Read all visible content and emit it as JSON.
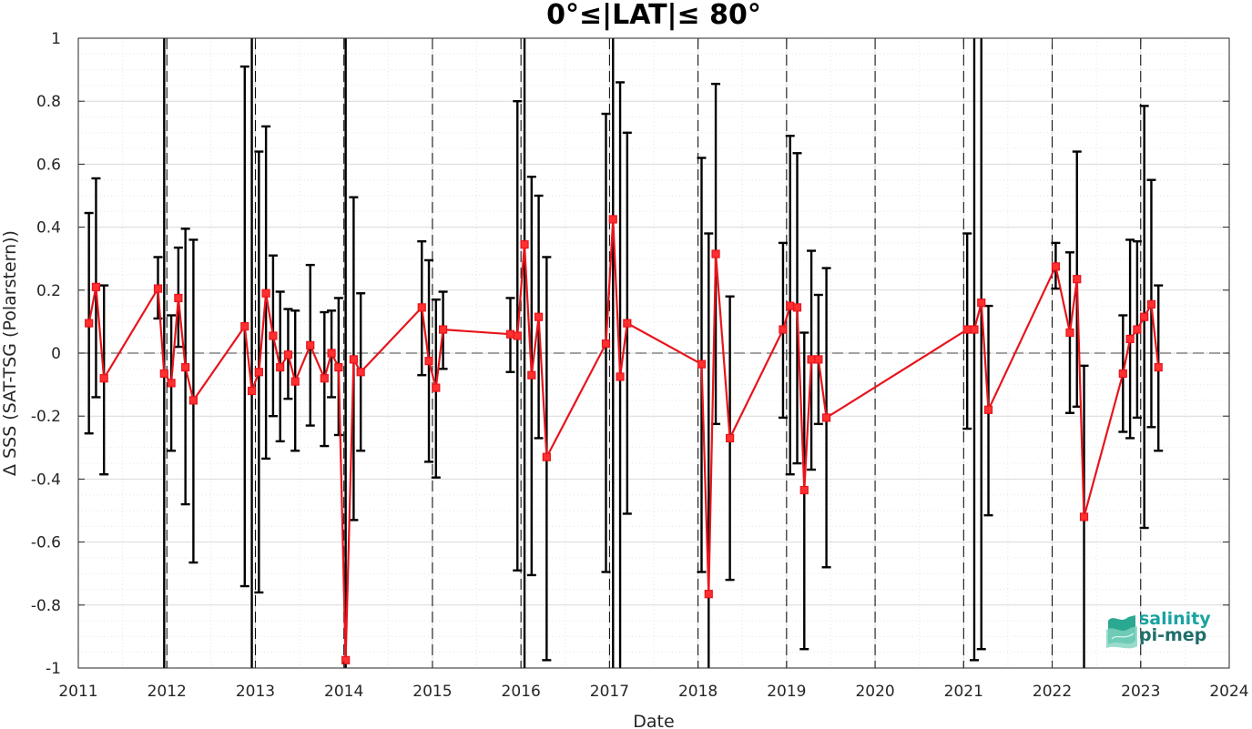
{
  "chart_data": {
    "type": "scatter",
    "title": "0°≤|LAT|≤ 80°",
    "xlabel": "Date",
    "ylabel": "Δ SSS (SAT-TSG (Polarstern))",
    "xlim": [
      2011,
      2024
    ],
    "ylim": [
      -1,
      1
    ],
    "xticks": [
      "2011",
      "2012",
      "2013",
      "2014",
      "2015",
      "2016",
      "2017",
      "2018",
      "2019",
      "2020",
      "2021",
      "2022",
      "2023",
      "2024"
    ],
    "yticks": [
      "1",
      "0.8",
      "0.6",
      "0.4",
      "0.2",
      "0",
      "-0.2",
      "-0.4",
      "-0.6",
      "-0.8",
      "-1"
    ],
    "grid": "on (major and minor)",
    "reference_line": {
      "y": 0,
      "style": "dashed"
    },
    "year_boundaries_dashed": true,
    "series": [
      {
        "marker": "square",
        "color": "#e8141c",
        "errorbar_color": "#000000",
        "points": [
          {
            "x": 2011.12,
            "y": 0.095,
            "lo": -0.255,
            "hi": 0.445
          },
          {
            "x": 2011.2,
            "y": 0.21,
            "lo": -0.14,
            "hi": 0.555
          },
          {
            "x": 2011.29,
            "y": -0.08,
            "lo": -0.385,
            "hi": 0.215
          },
          {
            "x": 2011.9,
            "y": 0.205,
            "lo": 0.11,
            "hi": 0.305
          },
          {
            "x": 2011.97,
            "y": -0.065,
            "lo": -1.0,
            "hi": 1.0
          },
          {
            "x": 2012.05,
            "y": -0.095,
            "lo": -0.31,
            "hi": 0.12
          },
          {
            "x": 2012.13,
            "y": 0.175,
            "lo": 0.02,
            "hi": 0.335
          },
          {
            "x": 2012.21,
            "y": -0.045,
            "lo": -0.48,
            "hi": 0.395
          },
          {
            "x": 2012.3,
            "y": -0.15,
            "lo": -0.665,
            "hi": 0.36
          },
          {
            "x": 2012.88,
            "y": 0.085,
            "lo": -0.74,
            "hi": 0.91
          },
          {
            "x": 2012.96,
            "y": -0.12,
            "lo": -1.0,
            "hi": 1.0
          },
          {
            "x": 2013.04,
            "y": -0.06,
            "lo": -0.76,
            "hi": 0.64
          },
          {
            "x": 2013.12,
            "y": 0.19,
            "lo": -0.335,
            "hi": 0.72
          },
          {
            "x": 2013.2,
            "y": 0.055,
            "lo": -0.2,
            "hi": 0.31
          },
          {
            "x": 2013.28,
            "y": -0.045,
            "lo": -0.28,
            "hi": 0.195
          },
          {
            "x": 2013.37,
            "y": -0.005,
            "lo": -0.145,
            "hi": 0.14
          },
          {
            "x": 2013.45,
            "y": -0.09,
            "lo": -0.31,
            "hi": 0.135
          },
          {
            "x": 2013.62,
            "y": 0.025,
            "lo": -0.23,
            "hi": 0.28
          },
          {
            "x": 2013.78,
            "y": -0.08,
            "lo": -0.295,
            "hi": 0.13
          },
          {
            "x": 2013.86,
            "y": 0.0,
            "lo": -0.14,
            "hi": 0.135
          },
          {
            "x": 2013.94,
            "y": -0.045,
            "lo": -0.26,
            "hi": 0.175
          },
          {
            "x": 2014.02,
            "y": -0.975,
            "lo": -1.0,
            "hi": 1.0
          },
          {
            "x": 2014.11,
            "y": -0.02,
            "lo": -0.53,
            "hi": 0.495
          },
          {
            "x": 2014.19,
            "y": -0.06,
            "lo": -0.31,
            "hi": 0.19
          },
          {
            "x": 2014.88,
            "y": 0.145,
            "lo": -0.07,
            "hi": 0.355
          },
          {
            "x": 2014.96,
            "y": -0.025,
            "lo": -0.345,
            "hi": 0.295
          },
          {
            "x": 2015.04,
            "y": -0.11,
            "lo": -0.395,
            "hi": 0.17
          },
          {
            "x": 2015.12,
            "y": 0.075,
            "lo": -0.05,
            "hi": 0.195
          },
          {
            "x": 2015.88,
            "y": 0.06,
            "lo": -0.06,
            "hi": 0.175
          },
          {
            "x": 2015.96,
            "y": 0.055,
            "lo": -0.69,
            "hi": 0.8
          },
          {
            "x": 2016.04,
            "y": 0.345,
            "lo": -1.0,
            "hi": 1.0
          },
          {
            "x": 2016.12,
            "y": -0.07,
            "lo": -0.705,
            "hi": 0.56
          },
          {
            "x": 2016.2,
            "y": 0.115,
            "lo": -0.27,
            "hi": 0.5
          },
          {
            "x": 2016.29,
            "y": -0.33,
            "lo": -0.975,
            "hi": 0.305
          },
          {
            "x": 2016.96,
            "y": 0.03,
            "lo": -0.695,
            "hi": 0.76
          },
          {
            "x": 2017.04,
            "y": 0.425,
            "lo": -1.0,
            "hi": 1.0
          },
          {
            "x": 2017.12,
            "y": -0.075,
            "lo": -1.0,
            "hi": 0.86
          },
          {
            "x": 2017.2,
            "y": 0.095,
            "lo": -0.51,
            "hi": 0.7
          },
          {
            "x": 2018.04,
            "y": -0.035,
            "lo": -0.695,
            "hi": 0.62
          },
          {
            "x": 2018.12,
            "y": -0.765,
            "lo": -1.0,
            "hi": 0.38
          },
          {
            "x": 2018.2,
            "y": 0.315,
            "lo": -0.225,
            "hi": 0.855
          },
          {
            "x": 2018.36,
            "y": -0.27,
            "lo": -0.72,
            "hi": 0.18
          },
          {
            "x": 2018.96,
            "y": 0.075,
            "lo": -0.205,
            "hi": 0.35
          },
          {
            "x": 2019.04,
            "y": 0.15,
            "lo": -0.385,
            "hi": 0.69
          },
          {
            "x": 2019.12,
            "y": 0.145,
            "lo": -0.35,
            "hi": 0.635
          },
          {
            "x": 2019.2,
            "y": -0.435,
            "lo": -0.94,
            "hi": 0.065
          },
          {
            "x": 2019.28,
            "y": -0.02,
            "lo": -0.37,
            "hi": 0.325
          },
          {
            "x": 2019.36,
            "y": -0.02,
            "lo": -0.225,
            "hi": 0.185
          },
          {
            "x": 2019.45,
            "y": -0.205,
            "lo": -0.68,
            "hi": 0.27
          },
          {
            "x": 2021.04,
            "y": 0.075,
            "lo": -0.24,
            "hi": 0.38
          },
          {
            "x": 2021.12,
            "y": 0.075,
            "lo": -0.975,
            "hi": 1.0
          },
          {
            "x": 2021.2,
            "y": 0.16,
            "lo": -0.94,
            "hi": 1.0
          },
          {
            "x": 2021.28,
            "y": -0.18,
            "lo": -0.515,
            "hi": 0.15
          },
          {
            "x": 2022.04,
            "y": 0.275,
            "lo": 0.205,
            "hi": 0.35
          },
          {
            "x": 2022.2,
            "y": 0.065,
            "lo": -0.19,
            "hi": 0.32
          },
          {
            "x": 2022.28,
            "y": 0.235,
            "lo": -0.17,
            "hi": 0.64
          },
          {
            "x": 2022.36,
            "y": -0.52,
            "lo": -1.0,
            "hi": -0.04
          },
          {
            "x": 2022.8,
            "y": -0.065,
            "lo": -0.25,
            "hi": 0.12
          },
          {
            "x": 2022.88,
            "y": 0.045,
            "lo": -0.27,
            "hi": 0.36
          },
          {
            "x": 2022.96,
            "y": 0.075,
            "lo": -0.205,
            "hi": 0.355
          },
          {
            "x": 2023.04,
            "y": 0.115,
            "lo": -0.555,
            "hi": 0.785
          },
          {
            "x": 2023.12,
            "y": 0.155,
            "lo": -0.235,
            "hi": 0.55
          },
          {
            "x": 2023.2,
            "y": -0.045,
            "lo": -0.31,
            "hi": 0.215
          }
        ]
      }
    ]
  },
  "logo": {
    "line1": "salinity",
    "line2": "pi-mep"
  }
}
